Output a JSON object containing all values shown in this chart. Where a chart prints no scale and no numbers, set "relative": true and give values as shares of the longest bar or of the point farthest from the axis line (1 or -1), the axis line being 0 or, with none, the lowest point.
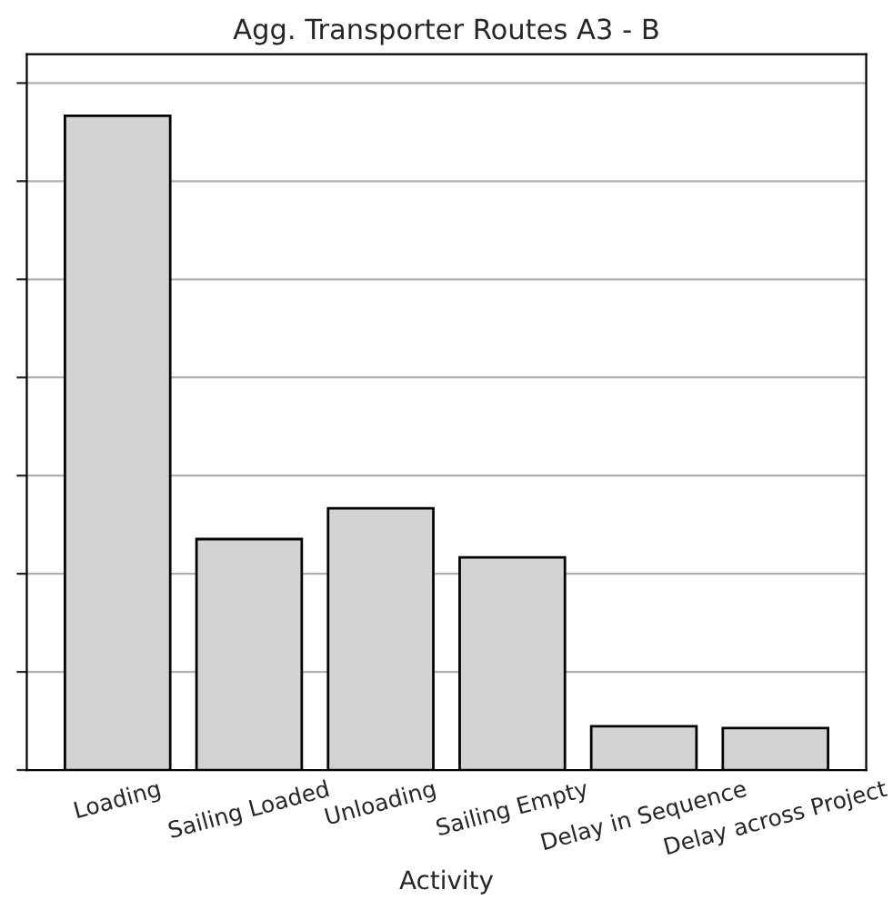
{
  "chart_data": {
    "type": "bar",
    "title": "Agg. Transporter Routes A3 - B",
    "xlabel": "Activity",
    "categories": [
      "Loading",
      "Sailing Loaded",
      "Unloading",
      "Sailing Empty",
      "Delay in Sequence",
      "Delay across Project"
    ],
    "values": [
      1,
      0.353,
      0.4,
      0.325,
      0.067,
      0.064
    ],
    "color": "#d3d3d3",
    "relative": true,
    "grid": "y",
    "tick_labels": "x"
  }
}
